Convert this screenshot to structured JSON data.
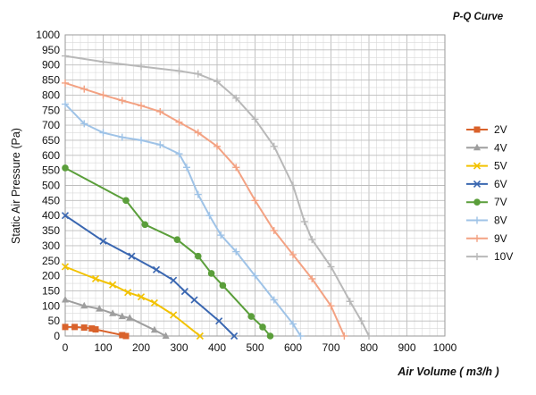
{
  "chart_data": {
    "type": "line",
    "title": "P-Q Curve",
    "xlabel": "Air Volume ( m3/h )",
    "ylabel": "Static Air Pressure  (Pa)",
    "xlim": [
      0,
      1000
    ],
    "ylim": [
      0,
      1000
    ],
    "x_ticks": [
      "0",
      "100",
      "200",
      "300",
      "400",
      "500",
      "600",
      "700",
      "800",
      "900",
      "1000"
    ],
    "y_ticks": [
      "0",
      "50",
      "100",
      "150",
      "200",
      "250",
      "300",
      "350",
      "400",
      "450",
      "500",
      "550",
      "600",
      "650",
      "700",
      "750",
      "800",
      "850",
      "900",
      "950",
      "1000"
    ],
    "grid": true,
    "legend_position": "right",
    "series": [
      {
        "name": "2V",
        "color": "#d9622b",
        "marker": "square",
        "x": [
          0,
          25,
          50,
          70,
          80,
          150,
          160
        ],
        "y": [
          30,
          30,
          28,
          25,
          22,
          3,
          0
        ]
      },
      {
        "name": "4V",
        "color": "#9e9e9e",
        "marker": "triangle",
        "x": [
          0,
          50,
          90,
          125,
          150,
          170,
          235,
          265
        ],
        "y": [
          120,
          100,
          90,
          75,
          65,
          60,
          20,
          0
        ]
      },
      {
        "name": "5V",
        "color": "#f2c200",
        "marker": "x",
        "x": [
          0,
          80,
          125,
          165,
          200,
          235,
          285,
          355
        ],
        "y": [
          230,
          190,
          170,
          145,
          130,
          110,
          70,
          0
        ]
      },
      {
        "name": "6V",
        "color": "#3a67b1",
        "marker": "x",
        "x": [
          0,
          100,
          175,
          240,
          285,
          315,
          340,
          405,
          445
        ],
        "y": [
          400,
          315,
          265,
          220,
          185,
          148,
          120,
          50,
          0
        ]
      },
      {
        "name": "7V",
        "color": "#5a9e3a",
        "marker": "circle",
        "x": [
          0,
          160,
          210,
          295,
          350,
          385,
          415,
          490,
          520,
          540
        ],
        "y": [
          558,
          450,
          370,
          320,
          265,
          208,
          168,
          65,
          30,
          0
        ]
      },
      {
        "name": "8V",
        "color": "#9fc3e7",
        "marker": "plus",
        "x": [
          0,
          50,
          100,
          150,
          200,
          250,
          300,
          320,
          350,
          380,
          410,
          450,
          500,
          550,
          600,
          620
        ],
        "y": [
          770,
          705,
          675,
          660,
          650,
          635,
          605,
          560,
          470,
          400,
          335,
          280,
          200,
          120,
          40,
          0
        ]
      },
      {
        "name": "9V",
        "color": "#f3a283",
        "marker": "plus",
        "x": [
          0,
          50,
          100,
          150,
          200,
          250,
          300,
          350,
          400,
          450,
          500,
          550,
          600,
          650,
          700,
          735
        ],
        "y": [
          840,
          820,
          800,
          782,
          765,
          745,
          710,
          675,
          630,
          560,
          450,
          350,
          270,
          190,
          100,
          0
        ]
      },
      {
        "name": "10V",
        "color": "#b8b8b8",
        "marker": "plus",
        "x": [
          0,
          100,
          200,
          300,
          350,
          400,
          450,
          500,
          550,
          600,
          630,
          650,
          700,
          750,
          780,
          800
        ],
        "y": [
          930,
          910,
          895,
          880,
          870,
          845,
          790,
          720,
          630,
          500,
          380,
          320,
          230,
          115,
          50,
          0
        ]
      }
    ]
  }
}
